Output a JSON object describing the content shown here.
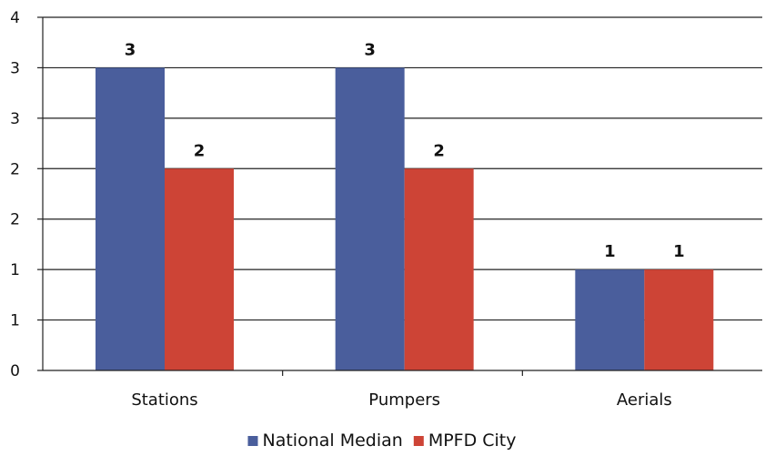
{
  "chart_data": {
    "type": "bar",
    "categories": [
      "Stations",
      "Pumpers",
      "Aerials"
    ],
    "series": [
      {
        "name": "National Median",
        "values": [
          3,
          3,
          1
        ],
        "data_labels": [
          "3",
          "3",
          "1"
        ],
        "color": "#4a5e9c"
      },
      {
        "name": "MPFD City",
        "values": [
          2,
          2,
          1
        ],
        "data_labels": [
          "2",
          "2",
          "1"
        ],
        "color": "#cd4436"
      }
    ],
    "y_tick_labels": [
      "0",
      "1",
      "1",
      "2",
      "2",
      "3",
      "3",
      "4"
    ],
    "ylim": [
      0,
      3.5
    ],
    "y_tick_step": 0.5,
    "grid": true,
    "legend_position": "bottom"
  }
}
